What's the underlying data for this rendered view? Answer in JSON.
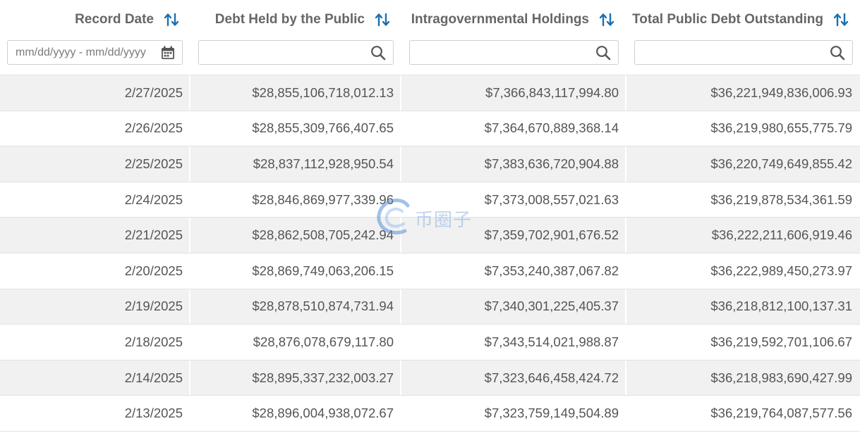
{
  "table": {
    "columns": [
      {
        "label": "Record Date",
        "filter_placeholder": "mm/dd/yyyy - mm/dd/yyyy",
        "filter_icon": "calendar-icon"
      },
      {
        "label": "Debt Held by the Public",
        "filter_placeholder": "",
        "filter_icon": "search-icon"
      },
      {
        "label": "Intragovernmental Holdings",
        "filter_placeholder": "",
        "filter_icon": "search-icon"
      },
      {
        "label": "Total Public Debt Outstanding",
        "filter_placeholder": "",
        "filter_icon": "search-icon"
      }
    ],
    "sort_icon": "sort-arrows-icon",
    "rows": [
      {
        "date": "2/27/2025",
        "public": "$28,855,106,718,012.13",
        "intragov": "$7,366,843,117,994.80",
        "total": "$36,221,949,836,006.93"
      },
      {
        "date": "2/26/2025",
        "public": "$28,855,309,766,407.65",
        "intragov": "$7,364,670,889,368.14",
        "total": "$36,219,980,655,775.79"
      },
      {
        "date": "2/25/2025",
        "public": "$28,837,112,928,950.54",
        "intragov": "$7,383,636,720,904.88",
        "total": "$36,220,749,649,855.42"
      },
      {
        "date": "2/24/2025",
        "public": "$28,846,869,977,339.96",
        "intragov": "$7,373,008,557,021.63",
        "total": "$36,219,878,534,361.59"
      },
      {
        "date": "2/21/2025",
        "public": "$28,862,508,705,242.94",
        "intragov": "$7,359,702,901,676.52",
        "total": "$36,222,211,606,919.46"
      },
      {
        "date": "2/20/2025",
        "public": "$28,869,749,063,206.15",
        "intragov": "$7,353,240,387,067.82",
        "total": "$36,222,989,450,273.97"
      },
      {
        "date": "2/19/2025",
        "public": "$28,878,510,874,731.94",
        "intragov": "$7,340,301,225,405.37",
        "total": "$36,218,812,100,137.31"
      },
      {
        "date": "2/18/2025",
        "public": "$28,876,078,679,117.80",
        "intragov": "$7,343,514,021,988.87",
        "total": "$36,219,592,701,106.67"
      },
      {
        "date": "2/14/2025",
        "public": "$28,895,337,232,003.27",
        "intragov": "$7,323,646,458,424.72",
        "total": "$36,218,983,690,427.99"
      },
      {
        "date": "2/13/2025",
        "public": "$28,896,004,938,072.67",
        "intragov": "$7,323,759,149,504.89",
        "total": "$36,219,764,087,577.56"
      }
    ]
  },
  "watermark": {
    "text": "币圈子"
  },
  "colors": {
    "sort_icon": "#1a6fb0",
    "header_text": "#666666",
    "cell_text": "#555555",
    "row_stripe": "#f1f1f1",
    "border": "#cfcfcf"
  }
}
